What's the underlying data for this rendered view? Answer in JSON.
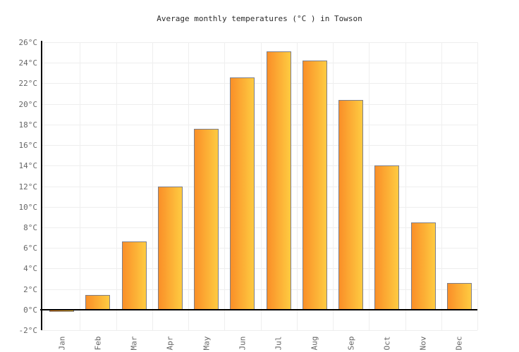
{
  "chart_data": {
    "type": "bar",
    "title": "Average monthly temperatures (°C ) in Towson",
    "categories": [
      "Jan",
      "Feb",
      "Mar",
      "Apr",
      "May",
      "Jun",
      "Jul",
      "Aug",
      "Sep",
      "Oct",
      "Nov",
      "Dec"
    ],
    "values": [
      -0.1,
      1.4,
      6.6,
      12.0,
      17.6,
      22.6,
      25.1,
      24.2,
      20.4,
      14.0,
      8.5,
      2.6
    ],
    "unit": "°C",
    "xlabel": "",
    "ylabel": "",
    "ylim": [
      -2,
      26
    ],
    "y_tick_step": 2,
    "y_tick_labels": [
      "26°C",
      "24°C",
      "22°C",
      "20°C",
      "18°C",
      "16°C",
      "14°C",
      "12°C",
      "10°C",
      "8°C",
      "6°C",
      "4°C",
      "2°C",
      "0°C",
      "-2°C"
    ],
    "grid": true,
    "legend_position": "none",
    "colors": {
      "background": "#FFFFFF",
      "bar_gradient_start": "#FA8F28",
      "bar_gradient_end": "#FECB41",
      "bar_border": "#7E7E88",
      "grid_line": "#EEEEEE",
      "axis_line": "#000000",
      "tick_label": "#666666",
      "title": "#2B2B2B"
    }
  }
}
